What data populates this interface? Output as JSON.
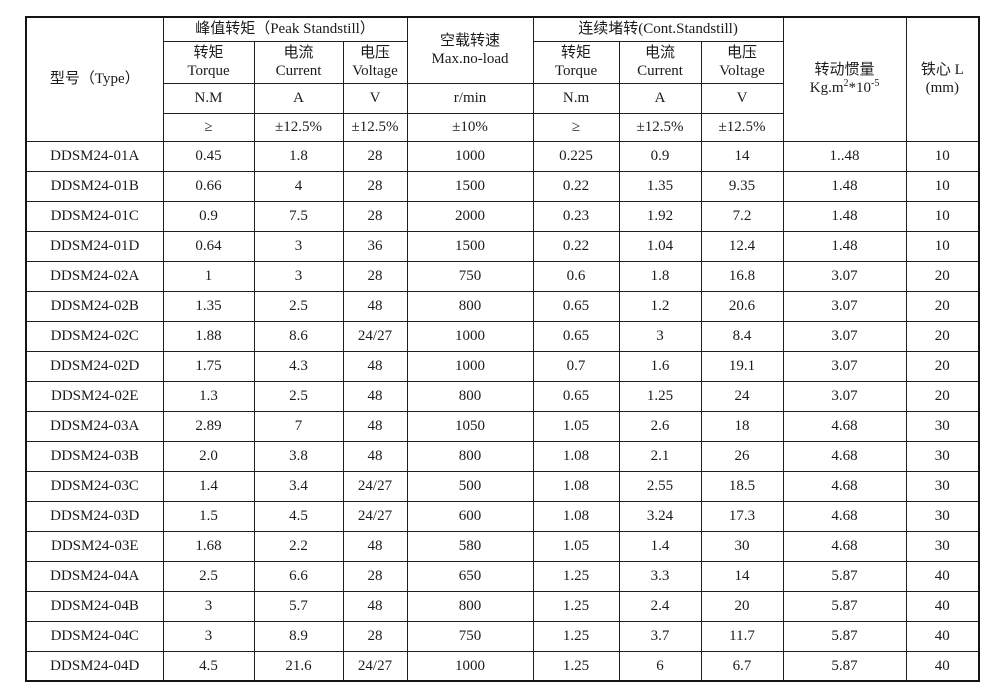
{
  "page": {
    "background": "#ffffff",
    "text_color": "#1b1b1b",
    "border_color": "#1a1a1a"
  },
  "table": {
    "header": {
      "type_label": "型号（Type）",
      "peak_group": "峰值转矩（Peak Standstill）",
      "noload": {
        "line1": "空载转速",
        "line2": "Max.no-load"
      },
      "cont_group": "连续堵转(Cont.Standstill)",
      "inertia": {
        "line1": "转动惯量",
        "unit_p1": "Kg.m",
        "unit_sup1": "2",
        "unit_p2": "*10",
        "unit_sup2": "-5"
      },
      "core": {
        "line1": "铁心 L",
        "line2": "(mm)"
      },
      "sub": {
        "torque_cn": "转矩",
        "torque_en": "Torque",
        "current_cn": "电流",
        "current_en": "Current",
        "voltage_cn": "电压",
        "voltage_en": "Voltage"
      },
      "units": [
        "N.M",
        "A",
        "V",
        "r/min",
        "N.m",
        "A",
        "V"
      ],
      "tolerances": [
        "≥",
        "±12.5%",
        "±12.5%",
        "±10%",
        "≥",
        "±12.5%",
        "±12.5%"
      ]
    },
    "rows": [
      [
        "DDSM24-01A",
        "0.45",
        "1.8",
        "28",
        "1000",
        "0.225",
        "0.9",
        "14",
        "1..48",
        "10"
      ],
      [
        "DDSM24-01B",
        "0.66",
        "4",
        "28",
        "1500",
        "0.22",
        "1.35",
        "9.35",
        "1.48",
        "10"
      ],
      [
        "DDSM24-01C",
        "0.9",
        "7.5",
        "28",
        "2000",
        "0.23",
        "1.92",
        "7.2",
        "1.48",
        "10"
      ],
      [
        "DDSM24-01D",
        "0.64",
        "3",
        "36",
        "1500",
        "0.22",
        "1.04",
        "12.4",
        "1.48",
        "10"
      ],
      [
        "DDSM24-02A",
        "1",
        "3",
        "28",
        "750",
        "0.6",
        "1.8",
        "16.8",
        "3.07",
        "20"
      ],
      [
        "DDSM24-02B",
        "1.35",
        "2.5",
        "48",
        "800",
        "0.65",
        "1.2",
        "20.6",
        "3.07",
        "20"
      ],
      [
        "DDSM24-02C",
        "1.88",
        "8.6",
        "24/27",
        "1000",
        "0.65",
        "3",
        "8.4",
        "3.07",
        "20"
      ],
      [
        "DDSM24-02D",
        "1.75",
        "4.3",
        "48",
        "1000",
        "0.7",
        "1.6",
        "19.1",
        "3.07",
        "20"
      ],
      [
        "DDSM24-02E",
        "1.3",
        "2.5",
        "48",
        "800",
        "0.65",
        "1.25",
        "24",
        "3.07",
        "20"
      ],
      [
        "DDSM24-03A",
        "2.89",
        "7",
        "48",
        "1050",
        "1.05",
        "2.6",
        "18",
        "4.68",
        "30"
      ],
      [
        "DDSM24-03B",
        "2.0",
        "3.8",
        "48",
        "800",
        "1.08",
        "2.1",
        "26",
        "4.68",
        "30"
      ],
      [
        "DDSM24-03C",
        "1.4",
        "3.4",
        "24/27",
        "500",
        "1.08",
        "2.55",
        "18.5",
        "4.68",
        "30"
      ],
      [
        "DDSM24-03D",
        "1.5",
        "4.5",
        "24/27",
        "600",
        "1.08",
        "3.24",
        "17.3",
        "4.68",
        "30"
      ],
      [
        "DDSM24-03E",
        "1.68",
        "2.2",
        "48",
        "580",
        "1.05",
        "1.4",
        "30",
        "4.68",
        "30"
      ],
      [
        "DDSM24-04A",
        "2.5",
        "6.6",
        "28",
        "650",
        "1.25",
        "3.3",
        "14",
        "5.87",
        "40"
      ],
      [
        "DDSM24-04B",
        "3",
        "5.7",
        "48",
        "800",
        "1.25",
        "2.4",
        "20",
        "5.87",
        "40"
      ],
      [
        "DDSM24-04C",
        "3",
        "8.9",
        "28",
        "750",
        "1.25",
        "3.7",
        "11.7",
        "5.87",
        "40"
      ],
      [
        "DDSM24-04D",
        "4.5",
        "21.6",
        "24/27",
        "1000",
        "1.25",
        "6",
        "6.7",
        "5.87",
        "40"
      ]
    ]
  }
}
